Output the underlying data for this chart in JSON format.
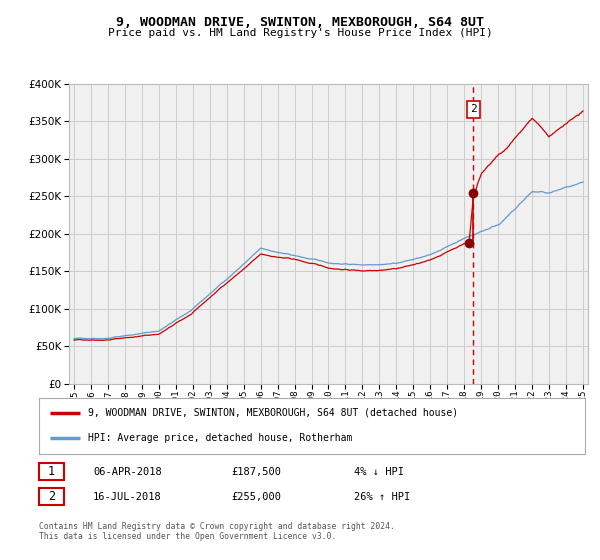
{
  "title": "9, WOODMAN DRIVE, SWINTON, MEXBOROUGH, S64 8UT",
  "subtitle": "Price paid vs. HM Land Registry's House Price Index (HPI)",
  "legend_line1": "9, WOODMAN DRIVE, SWINTON, MEXBOROUGH, S64 8UT (detached house)",
  "legend_line2": "HPI: Average price, detached house, Rotherham",
  "annotation1_date": "06-APR-2018",
  "annotation1_price": "£187,500",
  "annotation1_hpi": "4% ↓ HPI",
  "annotation2_date": "16-JUL-2018",
  "annotation2_price": "£255,000",
  "annotation2_hpi": "26% ↑ HPI",
  "copyright": "Contains HM Land Registry data © Crown copyright and database right 2024.\nThis data is licensed under the Open Government Licence v3.0.",
  "line_red_color": "#cc0000",
  "line_blue_color": "#6699cc",
  "marker_color": "#880000",
  "vline_color": "#cc0000",
  "grid_color": "#cccccc",
  "bg_color": "#ffffff",
  "plot_bg_color": "#f0f0f0",
  "year_start": 1995,
  "year_end": 2025,
  "ymin": 0,
  "ymax": 400000,
  "yticks": [
    0,
    50000,
    100000,
    150000,
    200000,
    250000,
    300000,
    350000,
    400000
  ],
  "sale1_year": 2018.27,
  "sale1_price": 187500,
  "sale2_year": 2018.54,
  "sale2_price": 255000,
  "vline_x": 2018.54,
  "hpi_key_years": [
    1995,
    1997,
    2000,
    2002,
    2004,
    2006,
    2008,
    2010,
    2012,
    2014,
    2016,
    2018,
    2019,
    2020,
    2021,
    2022,
    2023,
    2024,
    2025
  ],
  "hpi_key_prices": [
    60000,
    62000,
    72000,
    100000,
    140000,
    180000,
    170000,
    160000,
    158000,
    162000,
    172000,
    195000,
    205000,
    215000,
    235000,
    258000,
    255000,
    262000,
    265000
  ],
  "red_key_years": [
    1995,
    1997,
    2000,
    2002,
    2004,
    2006,
    2008,
    2010,
    2012,
    2014,
    2016,
    2018,
    2018.27,
    2018.54,
    2019,
    2020,
    2021,
    2022,
    2023,
    2024,
    2025
  ],
  "red_key_prices": [
    58000,
    60000,
    68000,
    95000,
    135000,
    172000,
    165000,
    153000,
    150000,
    155000,
    165000,
    188000,
    187500,
    255000,
    285000,
    310000,
    330000,
    355000,
    330000,
    350000,
    370000
  ]
}
